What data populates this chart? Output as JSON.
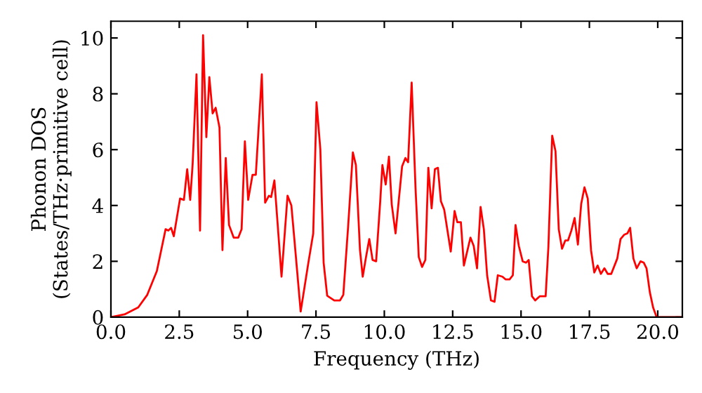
{
  "chart_data": {
    "type": "line",
    "xlabel": "Frequency (THz)",
    "ylabel": "Phonon DOS\n(States/THz·primitive cell)",
    "xlim": [
      0,
      20.9
    ],
    "ylim": [
      0,
      10.6
    ],
    "xticks": [
      {
        "value": 0,
        "label": "0.0"
      },
      {
        "value": 2.5,
        "label": "2.5"
      },
      {
        "value": 5,
        "label": "5.0"
      },
      {
        "value": 7.5,
        "label": "7.5"
      },
      {
        "value": 10,
        "label": "10.0"
      },
      {
        "value": 12.5,
        "label": "12.5"
      },
      {
        "value": 15,
        "label": "15.0"
      },
      {
        "value": 17.5,
        "label": "17.5"
      },
      {
        "value": 20,
        "label": "20.0"
      }
    ],
    "yticks": [
      0,
      2,
      4,
      6,
      8,
      10
    ],
    "grid": false,
    "legend": false,
    "marker": "none",
    "line_style": "solid",
    "series": [
      {
        "color": "#ff0000",
        "x": [
          0,
          0.5,
          1.0,
          1.33,
          1.68,
          2.0,
          2.1,
          2.2,
          2.3,
          2.53,
          2.67,
          2.79,
          2.9,
          2.99,
          3.13,
          3.26,
          3.37,
          3.49,
          3.6,
          3.72,
          3.83,
          3.97,
          4.08,
          4.2,
          4.32,
          4.49,
          4.66,
          4.78,
          4.9,
          5.02,
          5.18,
          5.3,
          5.52,
          5.64,
          5.78,
          5.86,
          5.98,
          6.24,
          6.46,
          6.6,
          6.7,
          6.94,
          7.23,
          7.4,
          7.52,
          7.66,
          7.78,
          7.91,
          8.17,
          8.38,
          8.5,
          8.68,
          8.85,
          8.96,
          9.11,
          9.21,
          9.33,
          9.45,
          9.57,
          9.7,
          9.85,
          9.93,
          10.05,
          10.17,
          10.27,
          10.41,
          10.53,
          10.65,
          10.77,
          10.87,
          11.0,
          11.14,
          11.26,
          11.38,
          11.5,
          11.61,
          11.73,
          11.85,
          11.96,
          12.07,
          12.19,
          12.43,
          12.57,
          12.67,
          12.8,
          12.91,
          13.15,
          13.27,
          13.39,
          13.52,
          13.64,
          13.76,
          13.9,
          14.03,
          14.15,
          14.32,
          14.44,
          14.58,
          14.7,
          14.8,
          14.92,
          15.06,
          15.18,
          15.28,
          15.4,
          15.52,
          15.69,
          15.9,
          16.0,
          16.14,
          16.26,
          16.38,
          16.5,
          16.62,
          16.72,
          16.84,
          16.96,
          17.08,
          17.2,
          17.32,
          17.44,
          17.56,
          17.68,
          17.8,
          17.92,
          18.05,
          18.17,
          18.3,
          18.52,
          18.64,
          18.77,
          18.89,
          18.99,
          19.11,
          19.23,
          19.37,
          19.49,
          19.59,
          19.71,
          19.83,
          19.96,
          20.9
        ],
        "values": [
          0,
          0.1,
          0.35,
          0.8,
          1.65,
          3.15,
          3.1,
          3.2,
          2.9,
          4.25,
          4.2,
          5.3,
          4.2,
          5.5,
          8.7,
          3.1,
          10.1,
          6.45,
          8.6,
          7.3,
          7.5,
          6.8,
          2.4,
          5.7,
          3.3,
          2.85,
          2.85,
          3.15,
          6.3,
          4.2,
          5.1,
          5.1,
          8.7,
          4.1,
          4.35,
          4.3,
          4.9,
          1.45,
          4.35,
          4.0,
          2.9,
          0.2,
          2.0,
          3.0,
          7.7,
          6.0,
          1.95,
          0.77,
          0.6,
          0.6,
          0.8,
          3.3,
          5.9,
          5.45,
          2.4,
          1.45,
          2.15,
          2.8,
          2.05,
          2.0,
          4.15,
          5.45,
          4.75,
          5.75,
          4.05,
          3.0,
          4.2,
          5.4,
          5.7,
          5.55,
          8.4,
          4.65,
          2.15,
          1.8,
          2.05,
          5.35,
          3.9,
          5.3,
          5.35,
          4.15,
          3.85,
          2.35,
          3.8,
          3.4,
          3.4,
          1.85,
          2.85,
          2.55,
          1.75,
          3.95,
          3.15,
          1.5,
          0.6,
          0.55,
          1.5,
          1.45,
          1.35,
          1.35,
          1.5,
          3.3,
          2.55,
          2.0,
          1.95,
          2.05,
          0.75,
          0.6,
          0.75,
          0.75,
          2.5,
          6.5,
          5.95,
          3.15,
          2.45,
          2.75,
          2.75,
          3.1,
          3.55,
          2.6,
          4.05,
          4.65,
          4.25,
          2.4,
          1.6,
          1.85,
          1.55,
          1.75,
          1.55,
          1.55,
          2.1,
          2.8,
          2.95,
          3.0,
          3.2,
          2.1,
          1.75,
          2.0,
          1.95,
          1.75,
          0.9,
          0.35,
          0,
          0
        ]
      }
    ]
  }
}
